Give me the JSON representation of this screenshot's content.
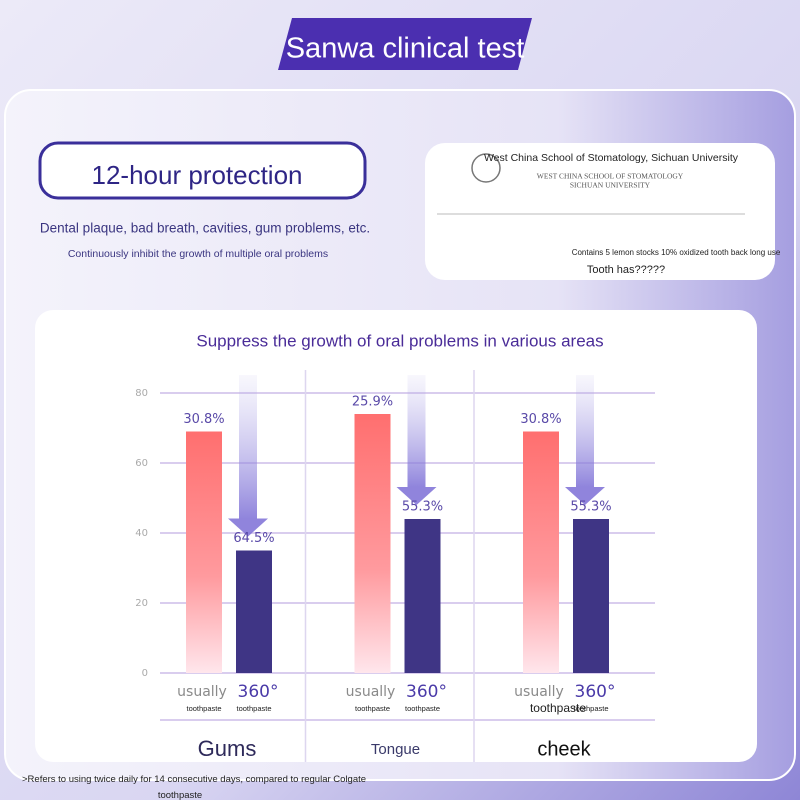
{
  "header": {
    "title": "Sanwa clinical test"
  },
  "intro": {
    "heading": "12-hour protection",
    "line1": "Dental plaque, bad breath, cavities, gum problems, etc.",
    "line2": "Continuously inhibit the growth of multiple oral problems"
  },
  "certificate": {
    "institution": "West China School of Stomatology, Sichuan University",
    "institution_caps_1": "WEST CHINA SCHOOL OF STOMATOLOGY",
    "institution_caps_2": "SICHUAN UNIVERSITY",
    "note_1": "Contains 5 lemon stocks 10% oxidized tooth back long use",
    "note_2": "Tooth has?????"
  },
  "chart_data": {
    "type": "bar",
    "title": "Suppress the growth of oral problems in various areas",
    "categories": [
      "Gums",
      "Tongue",
      "cheek"
    ],
    "series": [
      {
        "name": "usually",
        "subname": "toothpaste",
        "color": "#ff6f6f",
        "values": [
          69,
          74,
          69
        ],
        "annotations": [
          "30.8%",
          "25.9%",
          "30.8%"
        ]
      },
      {
        "name": "360°",
        "subname": "toothpaste",
        "color": "#3f3585",
        "values": [
          35,
          44,
          44
        ],
        "annotations": [
          "64.5%",
          "55.3%",
          "55.3%"
        ]
      }
    ],
    "ylim": [
      0,
      80
    ],
    "yticks": [
      0,
      20,
      40,
      60,
      80
    ],
    "grid": true
  },
  "footnote": ">Refers to using twice daily for 14 consecutive days, compared to regular Colgate toothpaste"
}
